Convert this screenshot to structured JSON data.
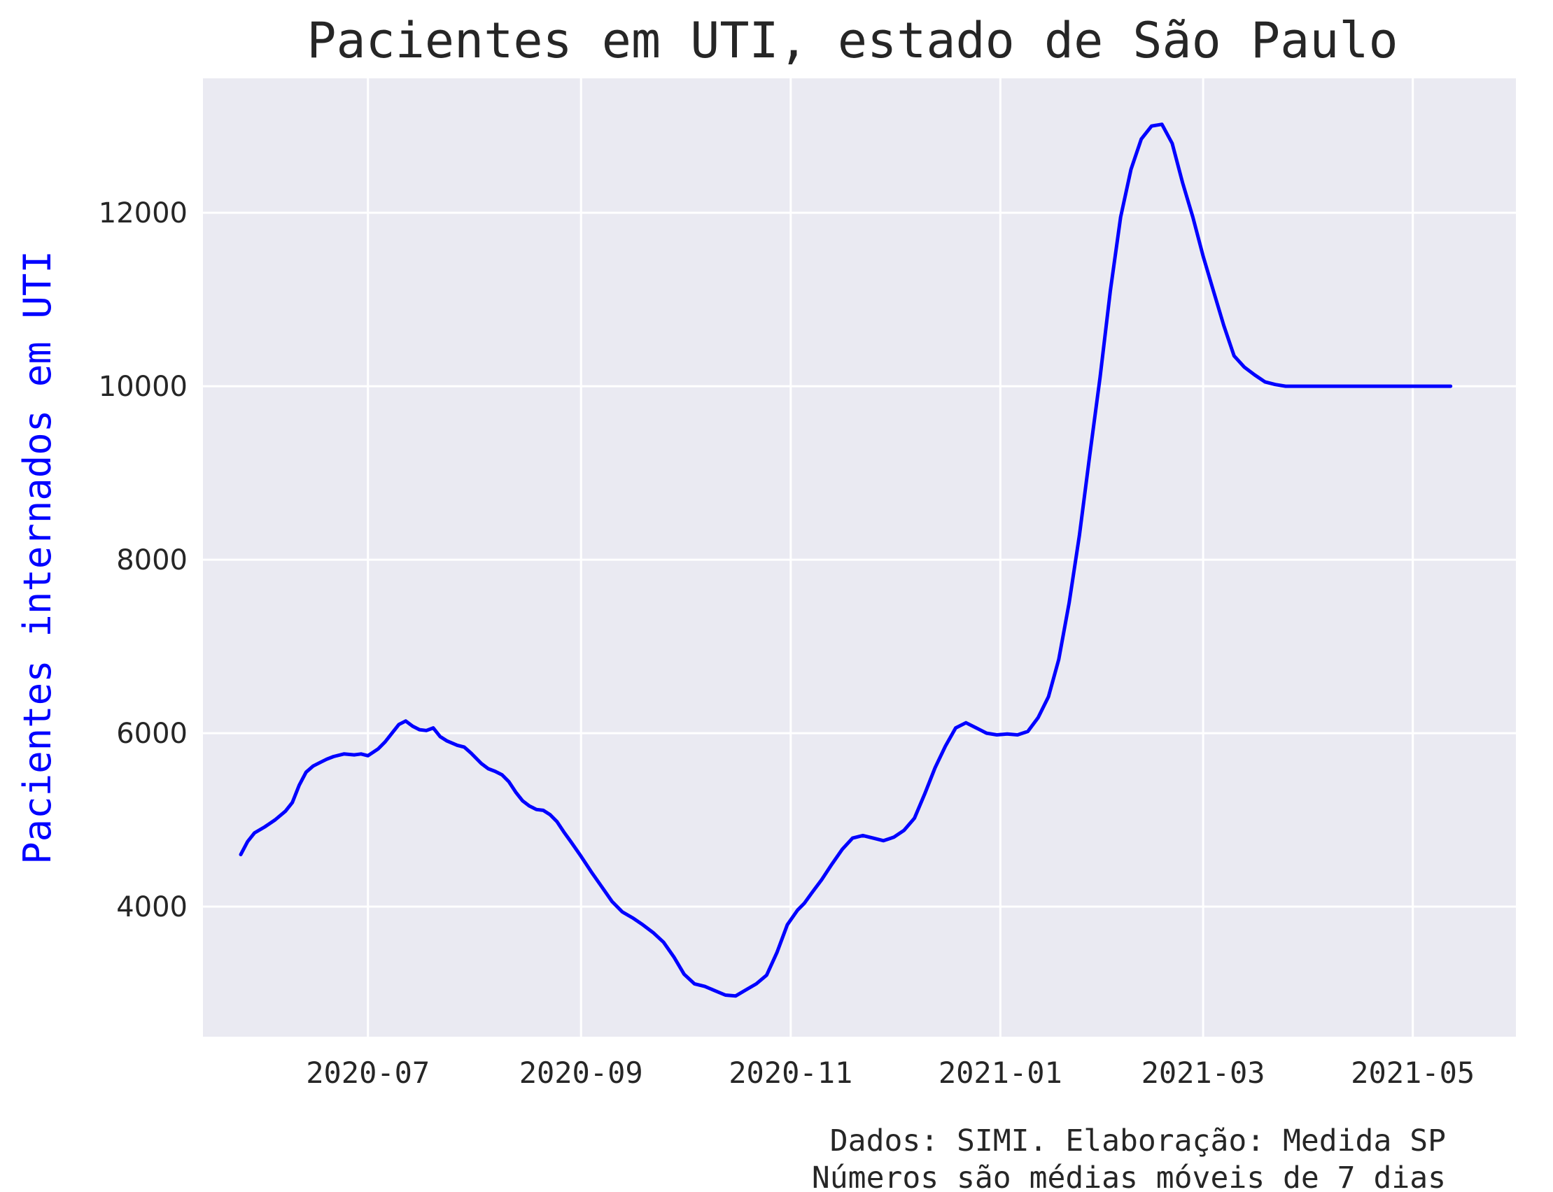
{
  "chart_data": {
    "type": "line",
    "title": "Pacientes em UTI, estado de São Paulo",
    "xlabel": "",
    "ylabel": "Pacientes internados em UTI",
    "ylabel_color": "#0000ff",
    "line_color": "#0000ff",
    "background": "#eaeaf2",
    "grid": true,
    "xlim": [
      "2020-05-14",
      "2021-05-31"
    ],
    "ylim": [
      2500,
      13550
    ],
    "x_ticks": [
      "2020-07",
      "2020-09",
      "2020-11",
      "2021-01",
      "2021-03",
      "2021-05"
    ],
    "y_ticks": [
      4000,
      6000,
      8000,
      10000,
      12000
    ],
    "series": [
      {
        "x": [
          "2020-05-25",
          "2020-05-27",
          "2020-05-29",
          "2020-06-01",
          "2020-06-04",
          "2020-06-07",
          "2020-06-09",
          "2020-06-11",
          "2020-06-13",
          "2020-06-15",
          "2020-06-17",
          "2020-06-19",
          "2020-06-21",
          "2020-06-24",
          "2020-06-27",
          "2020-06-29",
          "2020-07-01",
          "2020-07-04",
          "2020-07-06",
          "2020-07-08",
          "2020-07-10",
          "2020-07-12",
          "2020-07-14",
          "2020-07-16",
          "2020-07-18",
          "2020-07-20",
          "2020-07-22",
          "2020-07-24",
          "2020-07-27",
          "2020-07-29",
          "2020-07-31",
          "2020-08-03",
          "2020-08-05",
          "2020-08-07",
          "2020-08-09",
          "2020-08-11",
          "2020-08-13",
          "2020-08-15",
          "2020-08-17",
          "2020-08-19",
          "2020-08-21",
          "2020-08-23",
          "2020-08-25",
          "2020-08-27",
          "2020-08-29",
          "2020-09-01",
          "2020-09-04",
          "2020-09-07",
          "2020-09-10",
          "2020-09-13",
          "2020-09-16",
          "2020-09-19",
          "2020-09-22",
          "2020-09-25",
          "2020-09-28",
          "2020-10-01",
          "2020-10-04",
          "2020-10-07",
          "2020-10-10",
          "2020-10-13",
          "2020-10-16",
          "2020-10-19",
          "2020-10-22",
          "2020-10-25",
          "2020-10-28",
          "2020-10-31",
          "2020-11-03",
          "2020-11-05",
          "2020-11-07",
          "2020-11-10",
          "2020-11-13",
          "2020-11-16",
          "2020-11-19",
          "2020-11-22",
          "2020-11-25",
          "2020-11-28",
          "2020-12-01",
          "2020-12-04",
          "2020-12-07",
          "2020-12-10",
          "2020-12-13",
          "2020-12-16",
          "2020-12-19",
          "2020-12-22",
          "2020-12-25",
          "2020-12-28",
          "2020-12-31",
          "2021-01-03",
          "2021-01-06",
          "2021-01-09",
          "2021-01-12",
          "2021-01-15",
          "2021-01-18",
          "2021-01-21",
          "2021-01-24",
          "2021-01-27",
          "2021-01-30",
          "2021-02-02",
          "2021-02-05",
          "2021-02-08",
          "2021-02-11",
          "2021-02-14",
          "2021-02-17",
          "2021-02-20",
          "2021-02-23",
          "2021-02-26",
          "2021-03-01",
          "2021-03-04",
          "2021-03-07",
          "2021-03-10",
          "2021-03-13",
          "2021-03-16",
          "2021-03-19",
          "2021-03-22",
          "2021-03-25",
          "2021-03-28",
          "2021-03-31",
          "2021-04-02",
          "2021-04-04",
          "2021-04-07",
          "2021-04-10",
          "2021-04-13",
          "2021-04-16",
          "2021-04-19",
          "2021-04-22",
          "2021-04-25",
          "2021-04-28",
          "2021-05-01",
          "2021-05-04",
          "2021-05-07",
          "2021-05-10",
          "2021-05-12"
        ],
        "y": [
          4600,
          4750,
          4850,
          4920,
          5000,
          5100,
          5200,
          5400,
          5550,
          5620,
          5660,
          5700,
          5730,
          5760,
          5750,
          5760,
          5740,
          5820,
          5900,
          6000,
          6100,
          6140,
          6080,
          6040,
          6030,
          6060,
          5960,
          5910,
          5860,
          5840,
          5770,
          5650,
          5590,
          5560,
          5520,
          5440,
          5320,
          5220,
          5160,
          5120,
          5110,
          5060,
          4980,
          4860,
          4750,
          4580,
          4400,
          4230,
          4060,
          3940,
          3870,
          3790,
          3700,
          3590,
          3420,
          3220,
          3110,
          3080,
          3030,
          2980,
          2970,
          3040,
          3110,
          3210,
          3470,
          3790,
          3960,
          4040,
          4150,
          4310,
          4490,
          4660,
          4790,
          4820,
          4790,
          4760,
          4800,
          4880,
          5020,
          5300,
          5600,
          5850,
          6060,
          6120,
          6060,
          6000,
          5980,
          5990,
          5980,
          6020,
          6180,
          6420,
          6850,
          7500,
          8280,
          9200,
          10100,
          11100,
          11950,
          12500,
          12850,
          13000,
          13020,
          12800,
          12350,
          11950,
          11500,
          11100,
          10700,
          10350,
          10220,
          10130,
          10050,
          10020,
          10000,
          10000,
          10000,
          10000,
          10000,
          10000,
          10000,
          10000,
          10000,
          10000,
          10000,
          10000,
          10000,
          10000,
          10000,
          10000,
          10000,
          10000
        ]
      }
    ]
  },
  "footnote": {
    "line1": "Dados: SIMI. Elaboração: Medida SP",
    "line2": "Números são médias móveis de 7 dias"
  }
}
